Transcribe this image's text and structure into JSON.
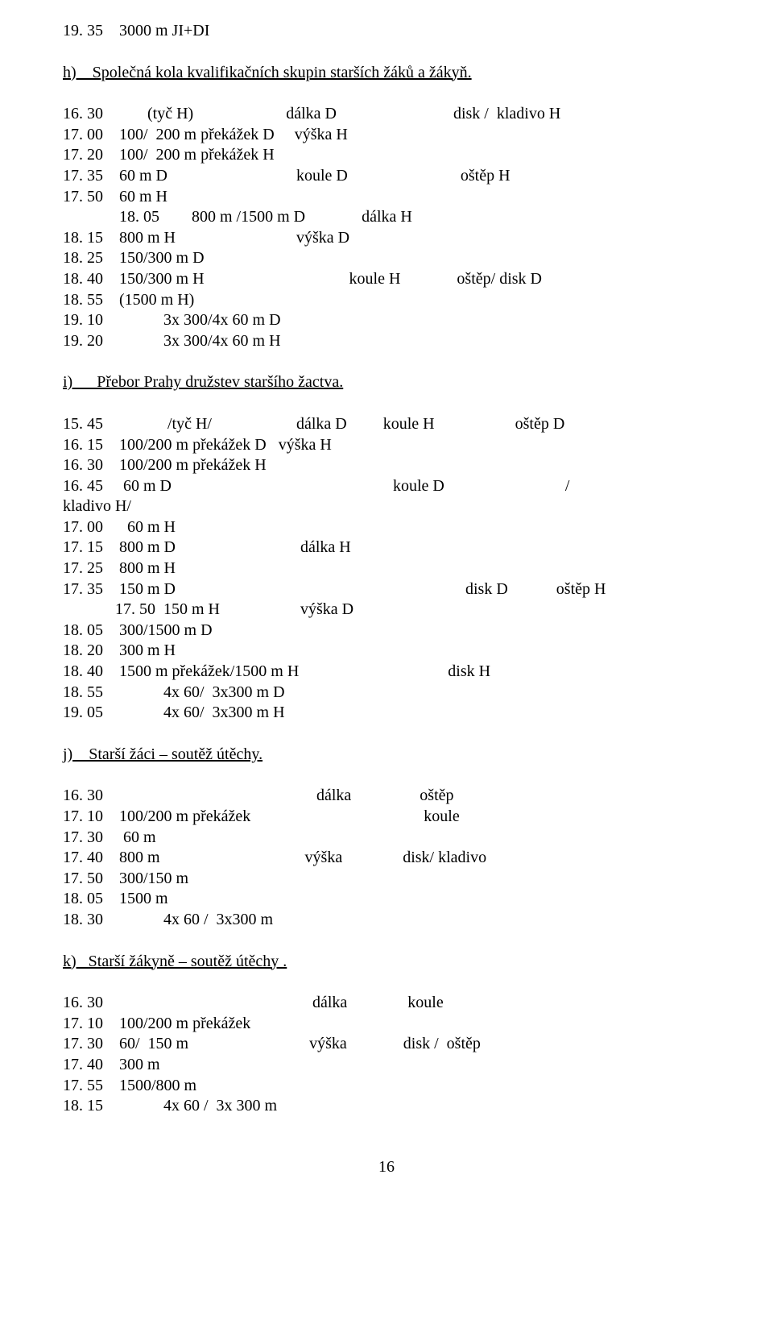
{
  "top": {
    "l1": "19. 35    3000 m JI+DI"
  },
  "h": {
    "title": "h)    Společná kola kvalifikačních skupin starších žáků a žákyň.",
    "l1": "16. 30           (tyč H)                       dálka D                             disk /  kladivo H",
    "l2": "17. 00    100/  200 m překážek D     výška H",
    "l3": "17. 20    100/  200 m překážek H",
    "l4": "17. 35    60 m D                                koule D                            oštěp H",
    "l5": "17. 50    60 m H",
    "l6": "              18. 05        800 m /1500 m D              dálka H",
    "l7": "18. 15    800 m H                              výška D",
    "l8": "18. 25    150/300 m D",
    "l9": "18. 40    150/300 m H                                    koule H              oštěp/ disk D",
    "l10": "18. 55    (1500 m H)",
    "l11": "19. 10               3x 300/4x 60 m D",
    "l12": "19. 20               3x 300/4x 60 m H"
  },
  "i": {
    "title": "i)      Přebor Prahy družstev staršího žactva.",
    "l1": "15. 45                /tyč H/                     dálka D         koule H                    oštěp D",
    "l2": "16. 15    100/200 m překážek D   výška H",
    "l3": "16. 30    100/200 m překážek H",
    "l4": "16. 45     60 m D                                                       koule D                              /",
    "l5": "kladivo H/",
    "l6": "17. 00      60 m H",
    "l7": "17. 15    800 m D                               dálka H",
    "l8": "17. 25    800 m H",
    "l9": "17. 35    150 m D                                                                        disk D            oštěp H",
    "l10": "             17. 50  150 m H                    výška D",
    "l11": "18. 05    300/1500 m D",
    "l12": "18. 20    300 m H",
    "l13": "18. 40    1500 m překážek/1500 m H                                     disk H",
    "l14": "18. 55               4x 60/  3x300 m D",
    "l15": "19. 05               4x 60/  3x300 m H"
  },
  "j": {
    "title": "j)    Starší žáci – soutěž útěchy.",
    "l1": "16. 30                                                     dálka                 oštěp",
    "l2": "17. 10    100/200 m překážek                                           koule",
    "l3": "17. 30     60 m",
    "l4": "17. 40    800 m                                    výška               disk/ kladivo",
    "l5": "17. 50    300/150 m",
    "l6": "18. 05    1500 m",
    "l7": "18. 30               4x 60 /  3x300 m"
  },
  "k": {
    "title": "k)   Starší žákyně – soutěž útěchy .",
    "l1": "16. 30                                                    dálka               koule",
    "l2": "17. 10    100/200 m překážek",
    "l3": "17. 30    60/  150 m                              výška              disk /  oštěp",
    "l4": "17. 40    300 m",
    "l5": "17. 55    1500/800 m",
    "l6": "18. 15               4x 60 /  3x 300 m"
  },
  "footer": {
    "page": "16"
  }
}
